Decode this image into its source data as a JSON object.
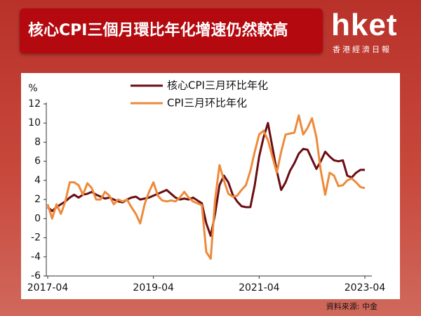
{
  "header": {
    "title": "核心CPI三個月環比年化增速仍然較高",
    "logo": "hket",
    "logo_sub": "香港經濟日報"
  },
  "chart_data": {
    "type": "line",
    "y_label": "%",
    "source": "資料來源: 中金",
    "categories": [
      "2017-04",
      null,
      null,
      null,
      null,
      null,
      null,
      null,
      null,
      null,
      null,
      null,
      null,
      null,
      null,
      null,
      null,
      null,
      null,
      null,
      null,
      null,
      null,
      null,
      "2019-04",
      null,
      null,
      null,
      null,
      null,
      null,
      null,
      null,
      null,
      null,
      null,
      null,
      null,
      null,
      null,
      null,
      null,
      null,
      null,
      null,
      null,
      null,
      null,
      "2021-04",
      null,
      null,
      null,
      null,
      null,
      null,
      null,
      null,
      null,
      null,
      null,
      null,
      null,
      null,
      null,
      null,
      null,
      null,
      null,
      null,
      null,
      null,
      null,
      "2023-04"
    ],
    "series": [
      {
        "name": "核心CPI三月环比年化",
        "color": "#6b0d12",
        "values": [
          1.2,
          0.8,
          1.2,
          1.5,
          1.8,
          2.2,
          2.5,
          2.2,
          2.5,
          2.6,
          2.8,
          2.5,
          2.3,
          2.1,
          2.2,
          2.0,
          1.8,
          1.7,
          2.0,
          2.2,
          2.3,
          2.0,
          2.1,
          2.2,
          2.4,
          2.6,
          2.8,
          3.0,
          2.6,
          2.2,
          2.0,
          2.1,
          2.0,
          2.2,
          1.9,
          1.6,
          -0.5,
          -1.8,
          0.5,
          3.5,
          4.5,
          3.8,
          2.5,
          1.8,
          1.3,
          1.2,
          1.2,
          3.5,
          6.5,
          8.5,
          10.0,
          7.5,
          5.0,
          3.0,
          3.8,
          5.0,
          5.8,
          6.8,
          7.3,
          7.2,
          6.2,
          5.2,
          6.0,
          7.0,
          6.5,
          6.1,
          6.0,
          6.1,
          4.5,
          4.3,
          4.8,
          5.1,
          5.1
        ]
      },
      {
        "name": "CPI三月环比年化",
        "color": "#ee8a3a",
        "values": [
          1.5,
          0.0,
          1.5,
          0.5,
          1.8,
          3.8,
          3.8,
          3.5,
          2.5,
          3.7,
          3.2,
          2.0,
          2.0,
          2.8,
          2.4,
          1.5,
          2.0,
          1.8,
          2.0,
          1.2,
          0.5,
          -0.5,
          1.5,
          2.8,
          3.8,
          2.4,
          1.9,
          1.8,
          1.9,
          1.8,
          2.2,
          2.8,
          2.2,
          1.8,
          1.6,
          1.4,
          -3.5,
          -4.2,
          2.0,
          5.6,
          4.0,
          2.6,
          2.3,
          2.4,
          3.0,
          3.5,
          5.0,
          7.0,
          8.8,
          9.2,
          8.2,
          6.5,
          4.8,
          7.0,
          8.8,
          8.9,
          9.0,
          10.8,
          8.8,
          9.5,
          10.5,
          8.5,
          5.0,
          2.5,
          4.8,
          4.5,
          3.4,
          3.5,
          4.0,
          4.2,
          3.8,
          3.3,
          3.2
        ]
      }
    ],
    "ylim": [
      -6,
      12
    ],
    "yticks": [
      -6,
      -4,
      -2,
      0,
      2,
      4,
      6,
      8,
      10,
      12
    ],
    "legend": "top"
  }
}
